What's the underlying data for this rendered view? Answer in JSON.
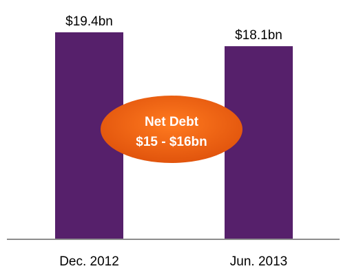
{
  "chart_data": {
    "type": "bar",
    "categories": [
      "Dec. 2012",
      "Jun. 2013"
    ],
    "values": [
      19.4,
      18.1
    ],
    "data_labels": [
      "$19.4bn",
      "$18.1bn"
    ],
    "annotation": {
      "line1": "Net Debt",
      "line2": "$15 - $16bn"
    },
    "title": "",
    "xlabel": "",
    "ylabel": "",
    "ylim": [
      0,
      19.4
    ],
    "grid": false,
    "legend": "none",
    "colors": {
      "bar": "#56206b",
      "axis": "#8c8c8c",
      "text": "#000000",
      "ellipse_inner": "#ff7a1f",
      "ellipse_outer": "#e0530c",
      "annotation_text": "#ffffff"
    }
  }
}
